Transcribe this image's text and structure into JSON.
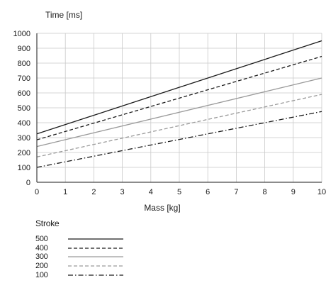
{
  "chart_data": {
    "type": "line",
    "ylabel": "Time [ms]",
    "xlabel": "Mass [kg]",
    "xlim": [
      0,
      10
    ],
    "ylim": [
      0,
      1000
    ],
    "x_ticks": [
      0,
      1,
      2,
      3,
      4,
      5,
      6,
      7,
      8,
      9,
      10
    ],
    "y_ticks": [
      0,
      100,
      200,
      300,
      400,
      500,
      600,
      700,
      800,
      900,
      1000
    ],
    "grid": true,
    "legend_title": "Stroke",
    "legend_placement": "below",
    "x": [
      0,
      10
    ],
    "series": [
      {
        "name": "500",
        "values": [
          325,
          950
        ],
        "style": "solid",
        "color": "#1a1a1a"
      },
      {
        "name": "400",
        "values": [
          285,
          845
        ],
        "style": "dashed",
        "color": "#1a1a1a"
      },
      {
        "name": "300",
        "values": [
          240,
          700
        ],
        "style": "solid",
        "color": "#9a9a9a"
      },
      {
        "name": "200",
        "values": [
          170,
          590
        ],
        "style": "dashed",
        "color": "#9a9a9a"
      },
      {
        "name": "100",
        "values": [
          100,
          475
        ],
        "style": "dashdot",
        "color": "#1a1a1a"
      }
    ]
  }
}
